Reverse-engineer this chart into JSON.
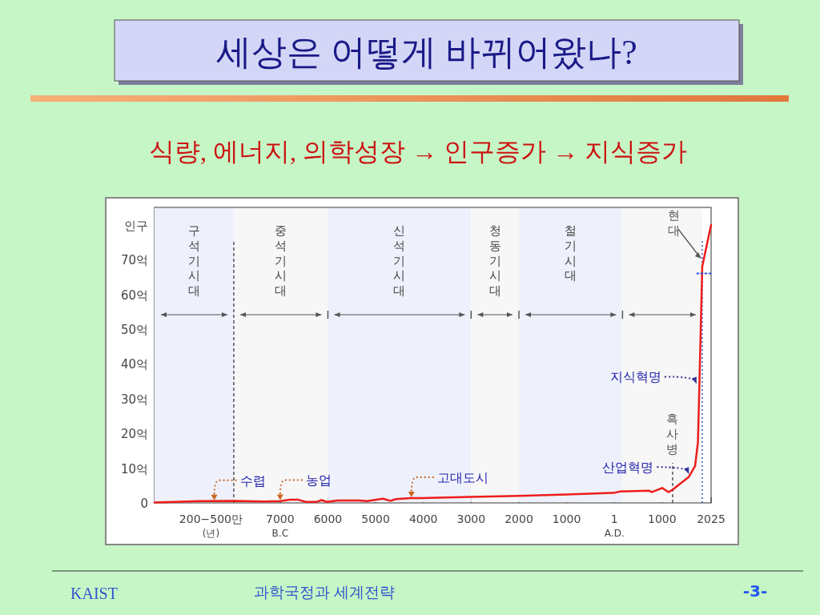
{
  "chart_data": {
    "type": "line",
    "title": "세상은 어떻게 바뀌어왔나?",
    "subtitle": "식량, 에너지, 의학성장 → 인구증가 → 지식증가",
    "series": [
      {
        "color": "#ee1c1c",
        "x": [
          -9630,
          -8680,
          -7960,
          -7340,
          -7000,
          -6790,
          -6620,
          -6460,
          -6230,
          -6130,
          -6020,
          -5800,
          -5350,
          -5180,
          -4850,
          -4690,
          -4570,
          -4250,
          -4030,
          -3000,
          -2000,
          -1000,
          1,
          120,
          730,
          780,
          1000,
          1130,
          1220,
          1560,
          1690,
          1750,
          1780,
          1840,
          2025
        ],
        "values": [
          0.1,
          0.5,
          0.6,
          0.4,
          0.5,
          0.9,
          0.9,
          0.3,
          0.3,
          0.8,
          0.3,
          0.7,
          0.7,
          0.5,
          1.2,
          0.6,
          1.1,
          1.4,
          1.4,
          1.7,
          2.0,
          2.4,
          2.9,
          3.3,
          3.5,
          3.1,
          4.3,
          3.1,
          3.8,
          7.5,
          10.6,
          17.5,
          34,
          68,
          80
        ]
      },
      {
        "type": "line",
        "color": "#3355dd",
        "line_style": "dotted",
        "x": [
          1730,
          2025
        ],
        "values": [
          66,
          66
        ]
      }
    ],
    "xlim": [
      -9630,
      2025
    ],
    "xticks": [
      {
        "value": -7000,
        "label": "7000\nB.C"
      },
      {
        "value": -6000,
        "label": "6000"
      },
      {
        "value": -5000,
        "label": "5000"
      },
      {
        "value": -4000,
        "label": "4000"
      },
      {
        "value": -3000,
        "label": "3000"
      },
      {
        "value": -2000,
        "label": "2000"
      },
      {
        "value": -1000,
        "label": "1000"
      },
      {
        "value": 1,
        "label": "1\nA.D."
      },
      1000,
      2025
    ],
    "ylim": [
      0,
      85
    ],
    "yticks": [
      0,
      {
        "value": 10,
        "label": "10억"
      },
      {
        "value": 20,
        "label": "20억"
      },
      {
        "value": 30,
        "label": "30억"
      },
      {
        "value": 40,
        "label": "40억"
      },
      {
        "value": 50,
        "label": "50억"
      },
      {
        "value": 60,
        "label": "60억"
      },
      {
        "value": 70,
        "label": "70억"
      },
      {
        "value": 80,
        "label": "인구"
      }
    ],
    "bands": [
      {
        "axis": "x",
        "from": -9630,
        "to": -7970,
        "label": "구석기시대",
        "color": "#eef1fb"
      },
      {
        "axis": "x",
        "from": -7970,
        "to": -6000,
        "label": "중석기시대",
        "color": "#f7f7f7"
      },
      {
        "axis": "x",
        "from": -6000,
        "to": -3000,
        "label": "신석기시대",
        "color": "#eef1fb"
      },
      {
        "axis": "x",
        "from": -3000,
        "to": -2000,
        "label": "청동기시대",
        "color": "#f7f7f7"
      },
      {
        "axis": "x",
        "from": -2000,
        "to": 170,
        "label": "철기시대",
        "color": "#eef1fb"
      },
      {
        "axis": "x",
        "from": 170,
        "to": 1840,
        "label": null,
        "color": "#f7f7f7"
      }
    ],
    "ref_lines": [
      {
        "axis": "x",
        "value": -7970,
        "label": null,
        "color": "#555555",
        "line_style": "dashed"
      },
      {
        "axis": "x",
        "value": 1220,
        "label": "흑사병",
        "color": "#555555",
        "line_style": "dashed"
      },
      {
        "axis": "x",
        "value": 1840,
        "label": null,
        "color": "#3355dd",
        "line_style": "dotted"
      }
    ],
    "annotations": [
      {
        "text": "수렵",
        "x": -8380,
        "y": 0.5
      },
      {
        "text": "농업",
        "x": -7000,
        "y": 0.6
      },
      {
        "text": "고대도시",
        "x": -4250,
        "y": 1.4
      },
      {
        "text": "산업혁명",
        "x": 1560,
        "y": 8
      },
      {
        "text": "지식혁명",
        "x": 1720,
        "y": 34
      },
      {
        "text": "현대",
        "x": 1840,
        "y": 70
      },
      "200−500만\n(년)",
      "KAIST",
      "과학국정과 세계전략",
      "-3-"
    ]
  }
}
